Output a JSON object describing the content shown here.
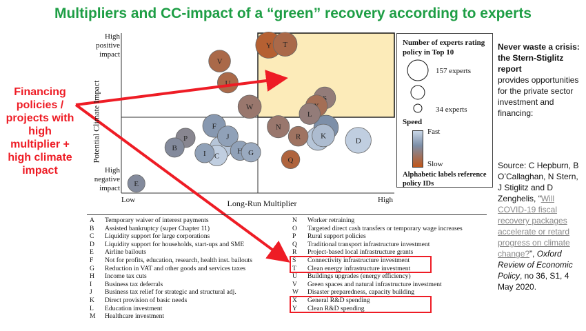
{
  "title": "Multipliers and CC-impact of a “green” recovery according to experts",
  "callout": "Financing policies / projects with high multiplier + high climate impact",
  "sidebar": {
    "heading": "Never waste a crisis: the Stern-Stiglitz report",
    "body": "provides opportunities for the private sector investment and financing:",
    "source_prefix": "Source: C Hepburn, B O’Callaghan, N Stern, J Stiglitz and D Zenghelis, “",
    "source_link": "Will COVID-19 fiscal recovery packages accelerate or retard progress on climate change?",
    "source_mid": "”, ",
    "source_journal": "Oxford Review of Economic Policy",
    "source_suffix": ", no 36, S1, 4 May 2020."
  },
  "legend": {
    "size_title": "Number of experts rating policy in Top 10",
    "size_large": "157 experts",
    "size_small": "34 experts",
    "speed_title": "Speed",
    "speed_fast": "Fast",
    "speed_slow": "Slow",
    "labels_note": "Alphabetic labels reference policy IDs",
    "color_fast": "#c9d7e8",
    "color_slow": "#c0561a"
  },
  "colors": {
    "title": "#1e9e45",
    "callout": "#ee1c25",
    "highlight_quadrant": "#fcebb9"
  },
  "chart_data": {
    "type": "scatter",
    "xlabel": "Long-Run Multiplier",
    "ylabel": "Potential Climate Impact",
    "x_ticks": {
      "low": "Low",
      "high": "High"
    },
    "y_ticks": {
      "high_line1": "High",
      "high_line2": "positive",
      "high_line3": "impact",
      "low_line1": "High",
      "low_line2": "negative",
      "low_line3": "impact"
    },
    "xlim": [
      0,
      1
    ],
    "ylim": [
      0,
      1
    ],
    "size_unit": "experts",
    "points": [
      {
        "id": "Y",
        "x": 0.54,
        "y": 0.925,
        "experts": 157,
        "speed": 0.9
      },
      {
        "id": "T",
        "x": 0.6,
        "y": 0.93,
        "experts": 120,
        "speed": 0.8
      },
      {
        "id": "V",
        "x": 0.36,
        "y": 0.825,
        "experts": 90,
        "speed": 0.8
      },
      {
        "id": "U",
        "x": 0.39,
        "y": 0.69,
        "experts": 75,
        "speed": 0.8
      },
      {
        "id": "W",
        "x": 0.47,
        "y": 0.54,
        "experts": 110,
        "speed": 0.65
      },
      {
        "id": "S",
        "x": 0.745,
        "y": 0.595,
        "experts": 90,
        "speed": 0.6
      },
      {
        "id": "X",
        "x": 0.715,
        "y": 0.545,
        "experts": 90,
        "speed": 0.75
      },
      {
        "id": "L",
        "x": 0.69,
        "y": 0.495,
        "experts": 80,
        "speed": 0.6
      },
      {
        "id": "N",
        "x": 0.575,
        "y": 0.415,
        "experts": 95,
        "speed": 0.65
      },
      {
        "id": "M",
        "x": 0.75,
        "y": 0.41,
        "experts": 130,
        "speed": 0.4
      },
      {
        "id": "K",
        "x": 0.74,
        "y": 0.36,
        "experts": 100,
        "speed": 0.15
      },
      {
        "id": "O",
        "x": 0.72,
        "y": 0.34,
        "experts": 110,
        "speed": 0.1
      },
      {
        "id": "D",
        "x": 0.868,
        "y": 0.33,
        "experts": 150,
        "speed": 0.05
      },
      {
        "id": "R",
        "x": 0.648,
        "y": 0.355,
        "experts": 65,
        "speed": 0.7
      },
      {
        "id": "Q",
        "x": 0.62,
        "y": 0.21,
        "experts": 50,
        "speed": 0.85
      },
      {
        "id": "F",
        "x": 0.34,
        "y": 0.42,
        "experts": 105,
        "speed": 0.35
      },
      {
        "id": "J",
        "x": 0.39,
        "y": 0.355,
        "experts": 75,
        "speed": 0.3
      },
      {
        "id": "A",
        "x": 0.365,
        "y": 0.285,
        "experts": 95,
        "speed": 0.1
      },
      {
        "id": "C",
        "x": 0.35,
        "y": 0.235,
        "experts": 75,
        "speed": 0.05
      },
      {
        "id": "H",
        "x": 0.435,
        "y": 0.265,
        "experts": 60,
        "speed": 0.3
      },
      {
        "id": "G",
        "x": 0.475,
        "y": 0.255,
        "experts": 60,
        "speed": 0.25
      },
      {
        "id": "I",
        "x": 0.305,
        "y": 0.25,
        "experts": 60,
        "speed": 0.3
      },
      {
        "id": "P",
        "x": 0.235,
        "y": 0.345,
        "experts": 60,
        "speed": 0.5
      },
      {
        "id": "B",
        "x": 0.195,
        "y": 0.285,
        "experts": 60,
        "speed": 0.45
      },
      {
        "id": "E",
        "x": 0.055,
        "y": 0.06,
        "experts": 40,
        "speed": 0.45
      }
    ],
    "policies_left": [
      {
        "id": "A",
        "name": "Temporary waiver of interest payments"
      },
      {
        "id": "B",
        "name": "Assisted bankruptcy (super Chapter 11)"
      },
      {
        "id": "C",
        "name": "Liquidity support for large corporations"
      },
      {
        "id": "D",
        "name": "Liquidity support for households, start-ups and SME"
      },
      {
        "id": "E",
        "name": "Airline bailouts"
      },
      {
        "id": "F",
        "name": "Not for profits, education, research, health inst. bailouts"
      },
      {
        "id": "G",
        "name": "Reduction in VAT and other goods and services taxes"
      },
      {
        "id": "H",
        "name": "Income tax cuts"
      },
      {
        "id": "I",
        "name": "Business tax deferrals"
      },
      {
        "id": "J",
        "name": "Business tax relief for strategic and structural adj."
      },
      {
        "id": "K",
        "name": "Direct provision of basic needs"
      },
      {
        "id": "L",
        "name": "Education investment"
      },
      {
        "id": "M",
        "name": "Healthcare investment"
      }
    ],
    "policies_right": [
      {
        "id": "N",
        "name": "Worker retraining"
      },
      {
        "id": "O",
        "name": "Targeted direct cash transfers or temporary wage increases"
      },
      {
        "id": "P",
        "name": "Rural support policies"
      },
      {
        "id": "Q",
        "name": "Traditional transport infrastructure investment"
      },
      {
        "id": "R",
        "name": "Project-based local infrastructure grants"
      },
      {
        "id": "S",
        "name": "Connectivity infrastructure investment"
      },
      {
        "id": "T",
        "name": "Clean energy infrastructure investment"
      },
      {
        "id": "U",
        "name": "Buildings upgrades (energy efficiency)"
      },
      {
        "id": "V",
        "name": "Green spaces and natural infrastructure investment"
      },
      {
        "id": "W",
        "name": "Disaster preparedness, capacity building"
      },
      {
        "id": "X",
        "name": "General R&D spending"
      },
      {
        "id": "Y",
        "name": "Clean R&D spending"
      }
    ],
    "highlighted": [
      "S",
      "T",
      "X",
      "Y"
    ]
  }
}
